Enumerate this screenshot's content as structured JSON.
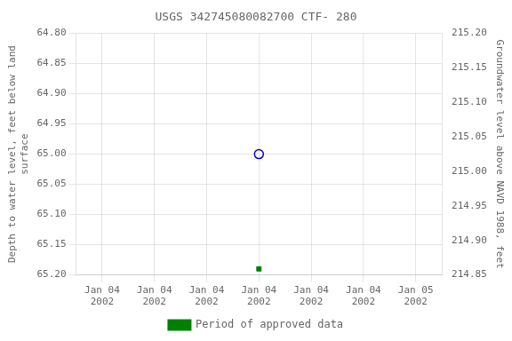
{
  "chart_data": {
    "type": "scatter",
    "title": "USGS 342745080082700 CTF- 280",
    "categories": [
      "Jan 04\n2002",
      "Jan 04\n2002",
      "Jan 04\n2002",
      "Jan 04\n2002",
      "Jan 04\n2002",
      "Jan 04\n2002",
      "Jan 05\n2002"
    ],
    "series": [
      {
        "color": "#0000cc",
        "marker": "open_circle",
        "values": [
          null,
          null,
          null,
          65.0,
          null,
          null,
          null
        ]
      },
      {
        "name": "Period of approved data",
        "color": "#008000",
        "marker": "square",
        "values": [
          null,
          null,
          null,
          65.19,
          null,
          null,
          null
        ]
      }
    ],
    "y_label": "Depth to water level, feet below land\nsurface",
    "y2_label": "Groundwater level above NAVD 1988, feet",
    "ylim": [
      65.2,
      64.8
    ],
    "yticks": [
      {
        "value": 64.8,
        "label": "64.80"
      },
      64.85,
      {
        "value": 64.9,
        "label": "64.90"
      },
      64.95,
      {
        "value": 65.0,
        "label": "65.00"
      },
      65.05,
      {
        "value": 65.1,
        "label": "65.10"
      },
      65.15,
      {
        "value": 65.2,
        "label": "65.20"
      }
    ],
    "y2lim": [
      214.85,
      215.2
    ],
    "y2ticks": [
      {
        "value": 215.2,
        "label": "215.20"
      },
      215.15,
      {
        "value": 215.1,
        "label": "215.10"
      },
      215.05,
      {
        "value": 215.0,
        "label": "215.00"
      },
      214.95,
      {
        "value": 214.9,
        "label": "214.90"
      },
      214.85
    ],
    "grid": true,
    "legend": "bottom"
  }
}
